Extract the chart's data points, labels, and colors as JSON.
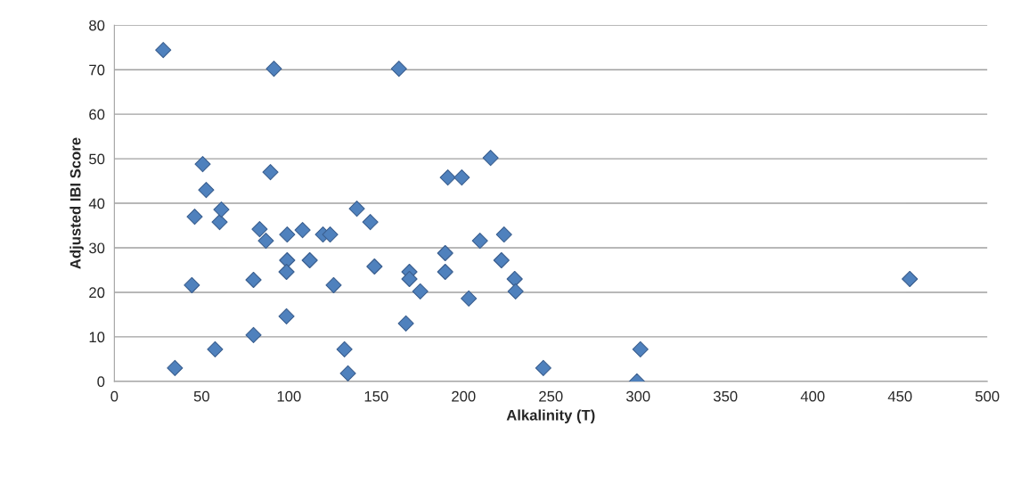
{
  "chart_data": {
    "type": "scatter",
    "xlabel": "Alkalinity (T)",
    "ylabel": "Adjusted IBI Score",
    "x": [
      28,
      34.7,
      44.4,
      46,
      50.6,
      52.6,
      57.7,
      60.3,
      61.3,
      79.7,
      79.7,
      83.2,
      86.8,
      89.4,
      91.4,
      99,
      99,
      98.6,
      98.6,
      107.8,
      111.9,
      119.5,
      123.6,
      125.6,
      131.8,
      133.8,
      138.9,
      146.6,
      149,
      163,
      167,
      169,
      169,
      175.2,
      189.5,
      189.5,
      191,
      199,
      203,
      209.4,
      215.5,
      221.7,
      223.2,
      229.3,
      229.8,
      245.7,
      301.3,
      299.3,
      455.6
    ],
    "values": [
      74.4,
      3,
      21.6,
      37,
      48.8,
      43,
      7.2,
      35.8,
      38.6,
      22.8,
      10.4,
      34.2,
      31.6,
      47,
      70.2,
      33,
      27.2,
      24.6,
      14.6,
      34,
      27.2,
      33,
      33,
      21.6,
      7.2,
      1.8,
      38.8,
      35.8,
      25.8,
      70.2,
      13,
      24.6,
      23,
      20.2,
      28.8,
      24.6,
      45.8,
      45.8,
      18.6,
      31.6,
      50.2,
      27.2,
      33,
      23,
      20.2,
      3,
      7.2,
      0,
      23
    ],
    "color": "#4f81bd",
    "marker": "diamond",
    "xlim": [
      0,
      500
    ],
    "xticks": [
      0,
      50,
      100,
      150,
      200,
      250,
      300,
      350,
      400,
      450,
      500
    ],
    "ylim": [
      0,
      80
    ],
    "yticks": [
      0,
      10,
      20,
      30,
      40,
      50,
      60,
      70,
      80
    ],
    "grid": "y"
  }
}
